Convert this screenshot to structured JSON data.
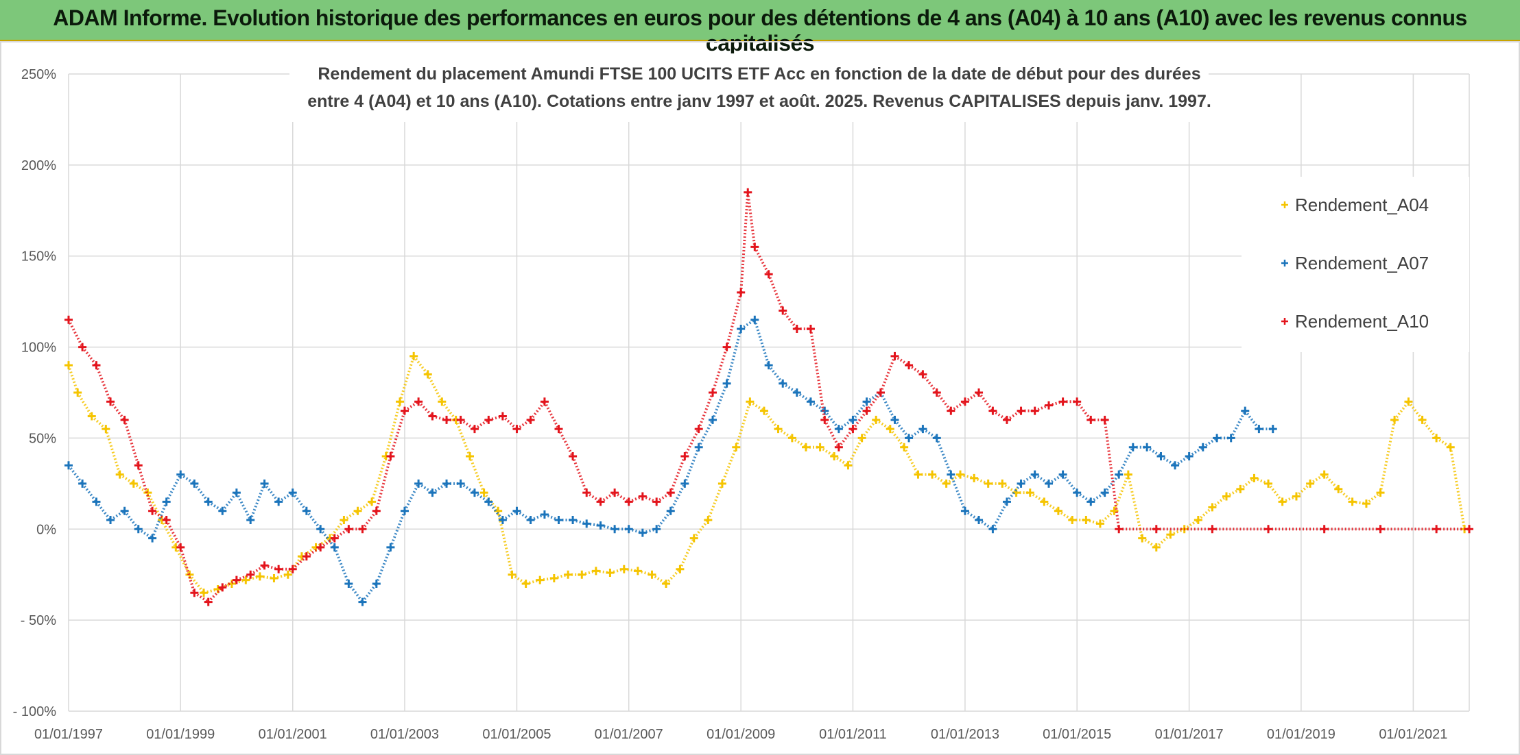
{
  "header": {
    "title": "ADAM Informe. Evolution historique des performances en euros pour des détentions de 4 ans (A04) à 10 ans (A10) avec les revenus connus capitalisés"
  },
  "chart_data": {
    "type": "scatter",
    "title_lines": [
      "Rendement du placement Amundi FTSE 100 UCITS ETF Acc en fonction de la date de début pour des durées",
      "entre 4 (A04) et 10 ans (A10). Cotations entre janv 1997 et août. 2025. Revenus CAPITALISES depuis janv. 1997."
    ],
    "x_axis": {
      "ticks": [
        "01/01/1997",
        "01/01/1999",
        "01/01/2001",
        "01/01/2003",
        "01/01/2005",
        "01/01/2007",
        "01/01/2009",
        "01/01/2011",
        "01/01/2013",
        "01/01/2015",
        "01/01/2017",
        "01/01/2019",
        "01/01/2021"
      ],
      "range": [
        "1997-01-01",
        "2022-01-01"
      ]
    },
    "y_axis": {
      "ticks": [
        "250%",
        "200%",
        "150%",
        "100%",
        "50%",
        "0%",
        "- 50%",
        "- 100%"
      ],
      "range": [
        -100,
        250
      ],
      "unit": "%"
    },
    "grid": true,
    "legend_position": "top-right",
    "series": [
      {
        "name": "Rendement_A04",
        "color": "#f5c400",
        "marker": "+",
        "points": [
          [
            "1997-01-01",
            90
          ],
          [
            "1997-03-01",
            75
          ],
          [
            "1997-06-01",
            62
          ],
          [
            "1997-09-01",
            55
          ],
          [
            "1997-12-01",
            30
          ],
          [
            "1998-03-01",
            25
          ],
          [
            "1998-06-01",
            20
          ],
          [
            "1998-09-01",
            5
          ],
          [
            "1998-12-01",
            -10
          ],
          [
            "1999-03-01",
            -25
          ],
          [
            "1999-06-01",
            -35
          ],
          [
            "1999-09-01",
            -33
          ],
          [
            "1999-12-01",
            -30
          ],
          [
            "2000-03-01",
            -28
          ],
          [
            "2000-06-01",
            -26
          ],
          [
            "2000-09-01",
            -27
          ],
          [
            "2000-12-01",
            -25
          ],
          [
            "2001-03-01",
            -15
          ],
          [
            "2001-06-01",
            -10
          ],
          [
            "2001-09-01",
            -5
          ],
          [
            "2001-12-01",
            5
          ],
          [
            "2002-03-01",
            10
          ],
          [
            "2002-06-01",
            15
          ],
          [
            "2002-09-01",
            40
          ],
          [
            "2002-12-01",
            70
          ],
          [
            "2003-03-01",
            95
          ],
          [
            "2003-06-01",
            85
          ],
          [
            "2003-09-01",
            70
          ],
          [
            "2003-12-01",
            60
          ],
          [
            "2004-03-01",
            40
          ],
          [
            "2004-06-01",
            20
          ],
          [
            "2004-09-01",
            10
          ],
          [
            "2004-12-01",
            -25
          ],
          [
            "2005-03-01",
            -30
          ],
          [
            "2005-06-01",
            -28
          ],
          [
            "2005-09-01",
            -27
          ],
          [
            "2005-12-01",
            -25
          ],
          [
            "2006-03-01",
            -25
          ],
          [
            "2006-06-01",
            -23
          ],
          [
            "2006-09-01",
            -24
          ],
          [
            "2006-12-01",
            -22
          ],
          [
            "2007-03-01",
            -23
          ],
          [
            "2007-06-01",
            -25
          ],
          [
            "2007-09-01",
            -30
          ],
          [
            "2007-12-01",
            -22
          ],
          [
            "2008-03-01",
            -5
          ],
          [
            "2008-06-01",
            5
          ],
          [
            "2008-09-01",
            25
          ],
          [
            "2008-12-01",
            45
          ],
          [
            "2009-03-01",
            70
          ],
          [
            "2009-06-01",
            65
          ],
          [
            "2009-09-01",
            55
          ],
          [
            "2009-12-01",
            50
          ],
          [
            "2010-03-01",
            45
          ],
          [
            "2010-06-01",
            45
          ],
          [
            "2010-09-01",
            40
          ],
          [
            "2010-12-01",
            35
          ],
          [
            "2011-03-01",
            50
          ],
          [
            "2011-06-01",
            60
          ],
          [
            "2011-09-01",
            55
          ],
          [
            "2011-12-01",
            45
          ],
          [
            "2012-03-01",
            30
          ],
          [
            "2012-06-01",
            30
          ],
          [
            "2012-09-01",
            25
          ],
          [
            "2012-12-01",
            30
          ],
          [
            "2013-03-01",
            28
          ],
          [
            "2013-06-01",
            25
          ],
          [
            "2013-09-01",
            25
          ],
          [
            "2013-12-01",
            20
          ],
          [
            "2014-03-01",
            20
          ],
          [
            "2014-06-01",
            15
          ],
          [
            "2014-09-01",
            10
          ],
          [
            "2014-12-01",
            5
          ],
          [
            "2015-03-01",
            5
          ],
          [
            "2015-06-01",
            3
          ],
          [
            "2015-09-01",
            10
          ],
          [
            "2015-12-01",
            30
          ],
          [
            "2016-03-01",
            -5
          ],
          [
            "2016-06-01",
            -10
          ],
          [
            "2016-09-01",
            -3
          ],
          [
            "2016-12-01",
            0
          ],
          [
            "2017-03-01",
            5
          ],
          [
            "2017-06-01",
            12
          ],
          [
            "2017-09-01",
            18
          ],
          [
            "2017-12-01",
            22
          ],
          [
            "2018-03-01",
            28
          ],
          [
            "2018-06-01",
            25
          ],
          [
            "2018-09-01",
            15
          ],
          [
            "2018-12-01",
            18
          ],
          [
            "2019-03-01",
            25
          ],
          [
            "2019-06-01",
            30
          ],
          [
            "2019-09-01",
            22
          ],
          [
            "2019-12-01",
            15
          ],
          [
            "2020-03-01",
            14
          ],
          [
            "2020-06-01",
            20
          ],
          [
            "2020-09-01",
            60
          ],
          [
            "2020-12-01",
            70
          ],
          [
            "2021-03-01",
            60
          ],
          [
            "2021-06-01",
            50
          ],
          [
            "2021-09-01",
            45
          ],
          [
            "2021-12-01",
            0
          ]
        ]
      },
      {
        "name": "Rendement_A07",
        "color": "#1b74bb",
        "marker": "+",
        "points": [
          [
            "1997-01-01",
            35
          ],
          [
            "1997-04-01",
            25
          ],
          [
            "1997-07-01",
            15
          ],
          [
            "1997-10-01",
            5
          ],
          [
            "1998-01-01",
            10
          ],
          [
            "1998-04-01",
            0
          ],
          [
            "1998-07-01",
            -5
          ],
          [
            "1998-10-01",
            15
          ],
          [
            "1999-01-01",
            30
          ],
          [
            "1999-04-01",
            25
          ],
          [
            "1999-07-01",
            15
          ],
          [
            "1999-10-01",
            10
          ],
          [
            "2000-01-01",
            20
          ],
          [
            "2000-04-01",
            5
          ],
          [
            "2000-07-01",
            25
          ],
          [
            "2000-10-01",
            15
          ],
          [
            "2001-01-01",
            20
          ],
          [
            "2001-04-01",
            10
          ],
          [
            "2001-07-01",
            0
          ],
          [
            "2001-10-01",
            -10
          ],
          [
            "2002-01-01",
            -30
          ],
          [
            "2002-04-01",
            -40
          ],
          [
            "2002-07-01",
            -30
          ],
          [
            "2002-10-01",
            -10
          ],
          [
            "2003-01-01",
            10
          ],
          [
            "2003-04-01",
            25
          ],
          [
            "2003-07-01",
            20
          ],
          [
            "2003-10-01",
            25
          ],
          [
            "2004-01-01",
            25
          ],
          [
            "2004-04-01",
            20
          ],
          [
            "2004-07-01",
            15
          ],
          [
            "2004-10-01",
            5
          ],
          [
            "2005-01-01",
            10
          ],
          [
            "2005-04-01",
            5
          ],
          [
            "2005-07-01",
            8
          ],
          [
            "2005-10-01",
            5
          ],
          [
            "2006-01-01",
            5
          ],
          [
            "2006-04-01",
            3
          ],
          [
            "2006-07-01",
            2
          ],
          [
            "2006-10-01",
            0
          ],
          [
            "2007-01-01",
            0
          ],
          [
            "2007-04-01",
            -2
          ],
          [
            "2007-07-01",
            0
          ],
          [
            "2007-10-01",
            10
          ],
          [
            "2008-01-01",
            25
          ],
          [
            "2008-04-01",
            45
          ],
          [
            "2008-07-01",
            60
          ],
          [
            "2008-10-01",
            80
          ],
          [
            "2009-01-01",
            110
          ],
          [
            "2009-04-01",
            115
          ],
          [
            "2009-07-01",
            90
          ],
          [
            "2009-10-01",
            80
          ],
          [
            "2010-01-01",
            75
          ],
          [
            "2010-04-01",
            70
          ],
          [
            "2010-07-01",
            65
          ],
          [
            "2010-10-01",
            55
          ],
          [
            "2011-01-01",
            60
          ],
          [
            "2011-04-01",
            70
          ],
          [
            "2011-07-01",
            75
          ],
          [
            "2011-10-01",
            60
          ],
          [
            "2012-01-01",
            50
          ],
          [
            "2012-04-01",
            55
          ],
          [
            "2012-07-01",
            50
          ],
          [
            "2012-10-01",
            30
          ],
          [
            "2013-01-01",
            10
          ],
          [
            "2013-04-01",
            5
          ],
          [
            "2013-07-01",
            0
          ],
          [
            "2013-10-01",
            15
          ],
          [
            "2014-01-01",
            25
          ],
          [
            "2014-04-01",
            30
          ],
          [
            "2014-07-01",
            25
          ],
          [
            "2014-10-01",
            30
          ],
          [
            "2015-01-01",
            20
          ],
          [
            "2015-04-01",
            15
          ],
          [
            "2015-07-01",
            20
          ],
          [
            "2015-10-01",
            30
          ],
          [
            "2016-01-01",
            45
          ],
          [
            "2016-04-01",
            45
          ],
          [
            "2016-07-01",
            40
          ],
          [
            "2016-10-01",
            35
          ],
          [
            "2017-01-01",
            40
          ],
          [
            "2017-04-01",
            45
          ],
          [
            "2017-07-01",
            50
          ],
          [
            "2017-10-01",
            50
          ],
          [
            "2018-01-01",
            65
          ],
          [
            "2018-04-01",
            55
          ],
          [
            "2018-07-01",
            55
          ]
        ]
      },
      {
        "name": "Rendement_A10",
        "color": "#e3141c",
        "marker": "+",
        "points": [
          [
            "1997-01-01",
            115
          ],
          [
            "1997-04-01",
            100
          ],
          [
            "1997-07-01",
            90
          ],
          [
            "1997-10-01",
            70
          ],
          [
            "1998-01-01",
            60
          ],
          [
            "1998-04-01",
            35
          ],
          [
            "1998-07-01",
            10
          ],
          [
            "1998-10-01",
            5
          ],
          [
            "1999-01-01",
            -10
          ],
          [
            "1999-04-01",
            -35
          ],
          [
            "1999-07-01",
            -40
          ],
          [
            "1999-10-01",
            -32
          ],
          [
            "2000-01-01",
            -28
          ],
          [
            "2000-04-01",
            -25
          ],
          [
            "2000-07-01",
            -20
          ],
          [
            "2000-10-01",
            -22
          ],
          [
            "2001-01-01",
            -22
          ],
          [
            "2001-04-01",
            -15
          ],
          [
            "2001-07-01",
            -10
          ],
          [
            "2001-10-01",
            -5
          ],
          [
            "2002-01-01",
            0
          ],
          [
            "2002-04-01",
            0
          ],
          [
            "2002-07-01",
            10
          ],
          [
            "2002-10-01",
            40
          ],
          [
            "2003-01-01",
            65
          ],
          [
            "2003-04-01",
            70
          ],
          [
            "2003-07-01",
            62
          ],
          [
            "2003-10-01",
            60
          ],
          [
            "2004-01-01",
            60
          ],
          [
            "2004-04-01",
            55
          ],
          [
            "2004-07-01",
            60
          ],
          [
            "2004-10-01",
            62
          ],
          [
            "2005-01-01",
            55
          ],
          [
            "2005-04-01",
            60
          ],
          [
            "2005-07-01",
            70
          ],
          [
            "2005-10-01",
            55
          ],
          [
            "2006-01-01",
            40
          ],
          [
            "2006-04-01",
            20
          ],
          [
            "2006-07-01",
            15
          ],
          [
            "2006-10-01",
            20
          ],
          [
            "2007-01-01",
            15
          ],
          [
            "2007-04-01",
            18
          ],
          [
            "2007-07-01",
            15
          ],
          [
            "2007-10-01",
            20
          ],
          [
            "2008-01-01",
            40
          ],
          [
            "2008-04-01",
            55
          ],
          [
            "2008-07-01",
            75
          ],
          [
            "2008-10-01",
            100
          ],
          [
            "2009-01-01",
            130
          ],
          [
            "2009-02-15",
            185
          ],
          [
            "2009-04-01",
            155
          ],
          [
            "2009-07-01",
            140
          ],
          [
            "2009-10-01",
            120
          ],
          [
            "2010-01-01",
            110
          ],
          [
            "2010-04-01",
            110
          ],
          [
            "2010-07-01",
            60
          ],
          [
            "2010-10-01",
            45
          ],
          [
            "2011-01-01",
            55
          ],
          [
            "2011-04-01",
            65
          ],
          [
            "2011-07-01",
            75
          ],
          [
            "2011-10-01",
            95
          ],
          [
            "2012-01-01",
            90
          ],
          [
            "2012-04-01",
            85
          ],
          [
            "2012-07-01",
            75
          ],
          [
            "2012-10-01",
            65
          ],
          [
            "2013-01-01",
            70
          ],
          [
            "2013-04-01",
            75
          ],
          [
            "2013-07-01",
            65
          ],
          [
            "2013-10-01",
            60
          ],
          [
            "2014-01-01",
            65
          ],
          [
            "2014-04-01",
            65
          ],
          [
            "2014-07-01",
            68
          ],
          [
            "2014-10-01",
            70
          ],
          [
            "2015-01-01",
            70
          ],
          [
            "2015-04-01",
            60
          ],
          [
            "2015-07-01",
            60
          ],
          [
            "2015-10-01",
            0
          ],
          [
            "2016-06-01",
            0
          ],
          [
            "2017-06-01",
            0
          ],
          [
            "2018-06-01",
            0
          ],
          [
            "2019-06-01",
            0
          ],
          [
            "2020-06-01",
            0
          ],
          [
            "2021-06-01",
            0
          ],
          [
            "2022-01-01",
            0
          ]
        ]
      }
    ]
  }
}
